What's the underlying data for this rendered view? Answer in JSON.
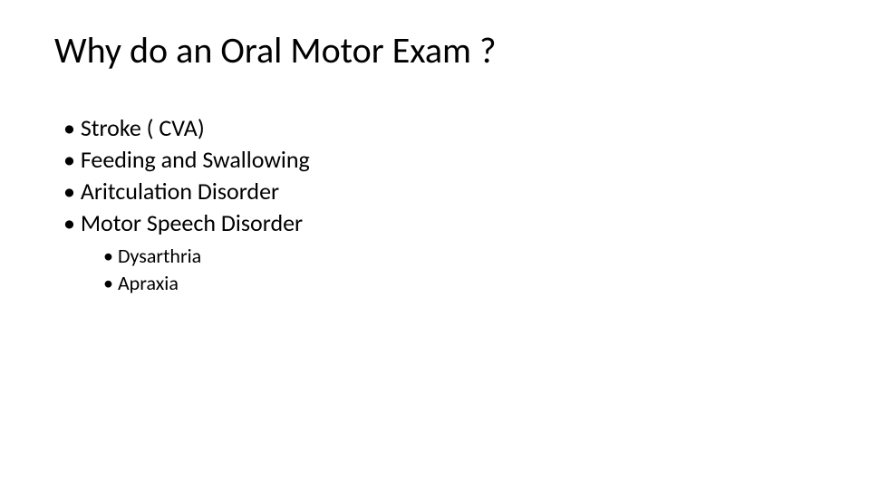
{
  "slide": {
    "background_color": "#ffffff",
    "text_color": "#000000",
    "title": {
      "text": "Why do an Oral Motor Exam ?",
      "fontsize": 40,
      "fontweight": 400
    },
    "bullets_level1_fontsize": 26,
    "bullets_level2_fontsize": 22,
    "bullets": [
      {
        "text": "Stroke ( CVA)"
      },
      {
        "text": "Feeding and Swallowing"
      },
      {
        "text": "Aritculation Disorder"
      },
      {
        "text": "Motor Speech Disorder",
        "children": [
          {
            "text": "Dysarthria"
          },
          {
            "text": "Apraxia"
          }
        ]
      }
    ]
  }
}
